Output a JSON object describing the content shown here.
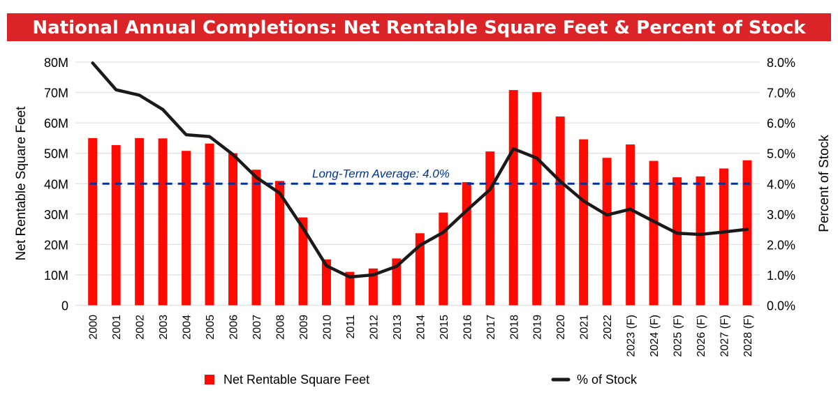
{
  "chart_data": {
    "type": "bar+line",
    "title": "National Annual Completions: Net Rentable Square Feet & Percent of Stock",
    "categories": [
      "2000",
      "2001",
      "2002",
      "2003",
      "2004",
      "2005",
      "2006",
      "2007",
      "2008",
      "2009",
      "2010",
      "2011",
      "2012",
      "2013",
      "2014",
      "2015",
      "2016",
      "2017",
      "2018",
      "2019",
      "2020",
      "2021",
      "2022",
      "2023 (F)",
      "2024 (F)",
      "2025 (F)",
      "2026 (F)",
      "2027 (F)",
      "2028 (F)"
    ],
    "series": [
      {
        "name": "Net Rentable Square Feet",
        "type": "bar",
        "axis": "left",
        "color": "#ff0a00",
        "values": [
          55.0,
          52.7,
          55.0,
          54.9,
          50.8,
          53.2,
          50.0,
          44.6,
          40.9,
          28.9,
          15.1,
          11.0,
          12.1,
          15.4,
          23.7,
          30.5,
          40.5,
          50.6,
          70.8,
          70.1,
          62.1,
          54.6,
          48.5,
          52.9,
          47.5,
          42.1,
          42.4,
          45.0,
          47.7
        ]
      },
      {
        "name": "% of Stock",
        "type": "line",
        "axis": "right",
        "color": "#1a1a1a",
        "values": [
          7.97,
          7.09,
          6.91,
          6.44,
          5.61,
          5.55,
          4.96,
          4.21,
          3.69,
          2.54,
          1.3,
          0.93,
          1.0,
          1.28,
          1.97,
          2.4,
          3.12,
          3.81,
          5.15,
          4.84,
          4.08,
          3.43,
          2.97,
          3.16,
          2.76,
          2.37,
          2.33,
          2.41,
          2.5
        ]
      }
    ],
    "ylabel": "Net Rentable Square Feet",
    "ylim": [
      0,
      80
    ],
    "yticks": [
      "0",
      "10M",
      "20M",
      "30M",
      "40M",
      "50M",
      "60M",
      "70M",
      "80M"
    ],
    "y2label": "Percent of Stock",
    "y2lim": [
      0,
      8
    ],
    "y2ticks": [
      "0.0%",
      "1.0%",
      "2.0%",
      "3.0%",
      "4.0%",
      "5.0%",
      "6.0%",
      "7.0%",
      "8.0%"
    ],
    "reference_line": {
      "label": "Long-Term Average: 4.0%",
      "value": 4.0,
      "axis": "right",
      "color": "#0033a0"
    },
    "grid": true,
    "legend": "bottom",
    "title_banner_color": "#db2427"
  }
}
